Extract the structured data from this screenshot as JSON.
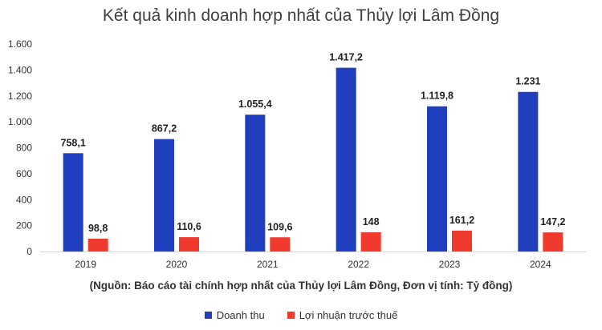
{
  "chart_data": {
    "type": "bar",
    "title": "Kết quả kinh doanh hợp nhất của Thủy lợi Lâm Đồng",
    "categories": [
      "2019",
      "2020",
      "2021",
      "2022",
      "2023",
      "2024"
    ],
    "series": [
      {
        "name": "Doanh thu",
        "color": "#1F3FBF",
        "values": [
          758.1,
          867.2,
          1055.4,
          1417.2,
          1119.8,
          1231
        ],
        "labels": [
          "758,1",
          "867,2",
          "1.055,4",
          "1.417,2",
          "1.119,8",
          "1.231"
        ]
      },
      {
        "name": "Lợi nhuận trước thuế",
        "color": "#F03A2E",
        "values": [
          98.8,
          110.6,
          109.6,
          148,
          161.2,
          147.2
        ],
        "labels": [
          "98,8",
          "110,6",
          "109,6",
          "148",
          "161,2",
          "147,2"
        ]
      }
    ],
    "ylim": [
      0,
      1600
    ],
    "yticks": [
      0,
      200,
      400,
      600,
      800,
      1000,
      1200,
      1400,
      1600
    ],
    "ytick_labels": [
      "0",
      "200",
      "400",
      "600",
      "800",
      "1.000",
      "1.200",
      "1.400",
      "1.600"
    ],
    "note": "(Nguồn: Báo cáo tài chính hợp nhất của Thủy lợi Lâm Đồng, Đơn vị tính: Tỷ đồng)",
    "legend_position": "bottom",
    "grid": false
  }
}
